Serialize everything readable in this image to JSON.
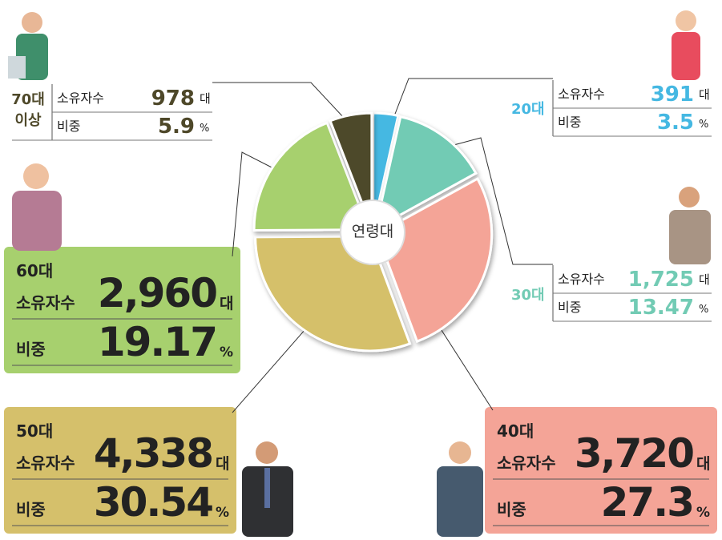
{
  "chart_data": {
    "type": "pie",
    "center_label": "연령대",
    "count_label": "소유자수",
    "share_label": "비중",
    "count_unit": "대",
    "share_unit": "%",
    "categories": [
      "20대",
      "30대",
      "40대",
      "50대",
      "60대",
      "70대 이상"
    ],
    "values": [
      3.5,
      13.47,
      27.3,
      30.54,
      19.17,
      5.9
    ],
    "counts": [
      "391",
      "1,725",
      "3,720",
      "4,338",
      "2,960",
      "978"
    ],
    "colors": [
      "#45b8e2",
      "#72cbb4",
      "#f4a497",
      "#d5c06b",
      "#a7d06e",
      "#4e4829"
    ]
  }
}
